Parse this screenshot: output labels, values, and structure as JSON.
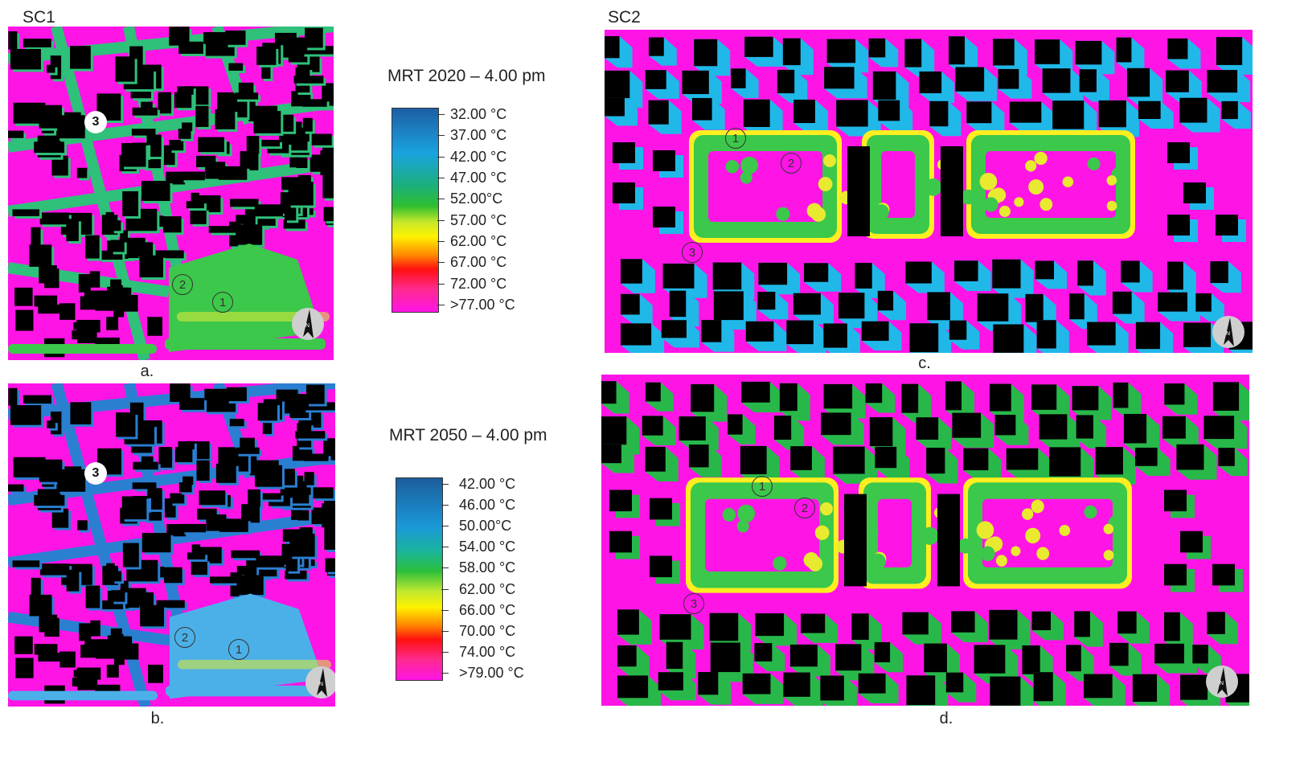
{
  "scenarios": {
    "sc1": "SC1",
    "sc2": "SC2"
  },
  "captions": {
    "a": "a.",
    "b": "b.",
    "c": "c.",
    "d": "d."
  },
  "legends": [
    {
      "title": "MRT 2020 – 4.00 pm",
      "labels": [
        "32.00 °C",
        "37.00 °C",
        "42.00 °C",
        "47.00 °C",
        "52.00°C",
        "57.00 °C",
        "62.00 °C",
        "67.00 °C",
        "72.00 °C",
        ">77.00 °C"
      ]
    },
    {
      "title": "MRT 2050 – 4.00 pm",
      "labels": [
        "42.00 °C",
        "46.00 °C",
        "50.00°C",
        "54.00 °C",
        "58.00 °C",
        "62.00 °C",
        "66.00 °C",
        "70.00 °C",
        "74.00 °C",
        ">79.00 °C"
      ]
    }
  ],
  "markers": {
    "m1": "1",
    "m2": "2",
    "m3": "3"
  },
  "compass_label": "N",
  "colors": {
    "hot": "#ff14e6",
    "building": "#000000",
    "shade_2020_sc1": "#2fc07a",
    "shade_2050_sc1": "#2a7fd0",
    "shade_2020_sc2": "#20b8e8",
    "shade_2050_sc2": "#28b84a",
    "park_2020": "#3cc84a",
    "park_2050": "#4cb0e8"
  }
}
